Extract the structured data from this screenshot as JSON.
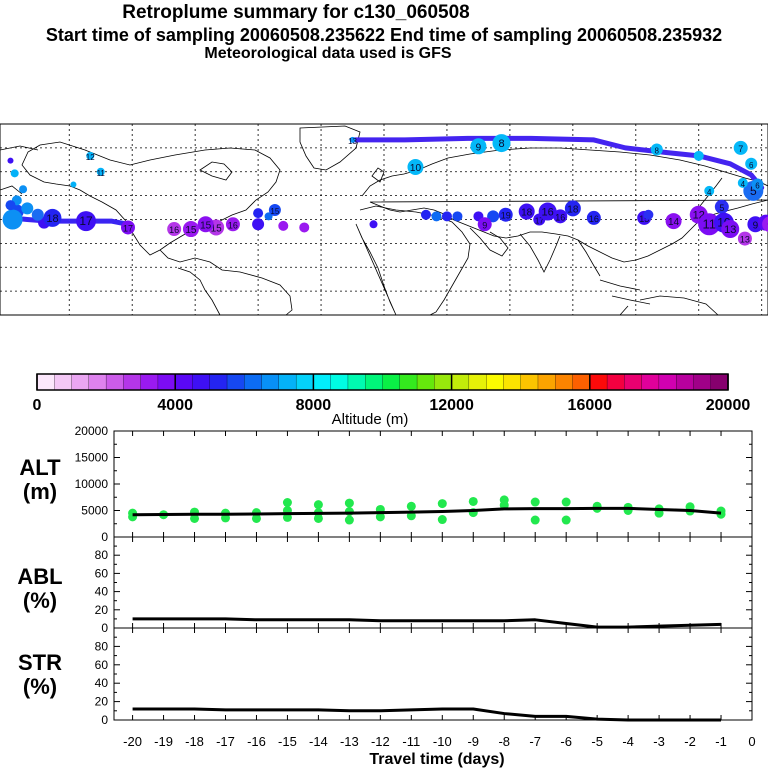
{
  "header": {
    "title": "Retroplume summary for c130_060508",
    "sampling": "Start time of sampling 20060508.235622     End time of sampling 20060508.235932",
    "met": "Meteorological data used is GFS"
  },
  "colorbar": {
    "label": "Altitude (m)",
    "ticks": [
      "0",
      "4000",
      "8000",
      "12000",
      "16000",
      "20000"
    ],
    "colors": [
      "#fce8fc",
      "#f4c8f6",
      "#eaa6f2",
      "#de82ee",
      "#cc5cea",
      "#b436e8",
      "#9a1af0",
      "#7c0cf4",
      "#5a08f6",
      "#3e10f4",
      "#2424f2",
      "#1648f2",
      "#0c6cf4",
      "#0890f6",
      "#04b2f8",
      "#04d2fa",
      "#02eefc",
      "#00fce4",
      "#00fab0",
      "#00f67a",
      "#0af046",
      "#34ea1e",
      "#66e80c",
      "#98e80c",
      "#c2ec0a",
      "#e6f208",
      "#fcfc00",
      "#fce400",
      "#fcc400",
      "#fca400",
      "#fc8400",
      "#fc6000",
      "#fc0a0a",
      "#f40040",
      "#ea0070",
      "#e0009a",
      "#d000b0",
      "#b8009e",
      "#a00088",
      "#86006e"
    ]
  },
  "panel_labels": {
    "alt": [
      "ALT",
      "(m)"
    ],
    "abl": [
      "ABL",
      "(%)"
    ],
    "str": [
      "STR",
      "(%)"
    ]
  },
  "xaxis_label": "Travel time (days)",
  "chart_data": [
    {
      "type": "scatter",
      "name": "ALT",
      "title": "",
      "xlabel": "Travel time (days)",
      "ylabel": "ALT (m)",
      "xlim": [
        -20,
        0
      ],
      "ylim": [
        0,
        20000
      ],
      "yticks": [
        0,
        5000,
        10000,
        15000,
        20000
      ],
      "line_color": "#000000",
      "point_color": "#22e84e",
      "line": {
        "x": [
          -20,
          -19,
          -18,
          -17,
          -16,
          -15,
          -14,
          -13,
          -12,
          -11,
          -10,
          -9,
          -8,
          -7,
          -6,
          -5,
          -4,
          -3,
          -2,
          -1
        ],
        "y": [
          4200,
          4250,
          4300,
          4300,
          4350,
          4400,
          4450,
          4500,
          4600,
          4700,
          4800,
          5000,
          5300,
          5350,
          5350,
          5400,
          5400,
          5200,
          5000,
          4500
        ]
      },
      "points": {
        "x": [
          -20,
          -20,
          -19,
          -18,
          -18,
          -17,
          -17,
          -16,
          -16,
          -15,
          -15,
          -15,
          -14,
          -14,
          -14,
          -13,
          -13,
          -13,
          -12,
          -12,
          -11,
          -11,
          -10,
          -10,
          -9,
          -9,
          -8,
          -8,
          -7,
          -7,
          -6,
          -6,
          -5,
          -5,
          -4,
          -4,
          -3,
          -3,
          -2,
          -2,
          -1,
          -1
        ],
        "y": [
          4500,
          3800,
          4200,
          4700,
          3500,
          4500,
          3600,
          4600,
          3500,
          6500,
          5000,
          3700,
          6100,
          4600,
          3500,
          6400,
          4800,
          3200,
          5200,
          3800,
          5800,
          4000,
          6300,
          3300,
          6700,
          4600,
          7000,
          6000,
          6600,
          3200,
          6600,
          3200,
          5800,
          5400,
          5600,
          5000,
          5300,
          4500,
          5700,
          4900,
          4900,
          4300
        ]
      }
    },
    {
      "type": "line",
      "name": "ABL",
      "title": "",
      "xlabel": "Travel time (days)",
      "ylabel": "ABL (%)",
      "xlim": [
        -20,
        0
      ],
      "ylim": [
        0,
        100
      ],
      "yticks": [
        0,
        20,
        40,
        60,
        80
      ],
      "x": [
        -20,
        -19,
        -18,
        -17,
        -16,
        -15,
        -14,
        -13,
        -12,
        -11,
        -10,
        -9,
        -8,
        -7,
        -6,
        -5,
        -4,
        -3,
        -2,
        -1
      ],
      "y": [
        10,
        10,
        10,
        10,
        9,
        9,
        9,
        9,
        8,
        8,
        8,
        8,
        8,
        9,
        5,
        1,
        1,
        2,
        3,
        4
      ]
    },
    {
      "type": "line",
      "name": "STR",
      "title": "",
      "xlabel": "Travel time (days)",
      "ylabel": "STR (%)",
      "xlim": [
        -20,
        0
      ],
      "ylim": [
        0,
        100
      ],
      "yticks": [
        0,
        20,
        40,
        60,
        80
      ],
      "xticks": [
        "-20",
        "-19",
        "-18",
        "-17",
        "-16",
        "-15",
        "-14",
        "-13",
        "-12",
        "-11",
        "-10",
        "-9",
        "-8",
        "-7",
        "-6",
        "-5",
        "-4",
        "-3",
        "-2",
        "-1",
        "0"
      ],
      "x": [
        -20,
        -19,
        -18,
        -17,
        -16,
        -15,
        -14,
        -13,
        -12,
        -11,
        -10,
        -9,
        -8,
        -7,
        -6,
        -5,
        -4,
        -3,
        -2,
        -1
      ],
      "y": [
        12,
        12,
        12,
        11,
        11,
        11,
        11,
        10,
        10,
        11,
        12,
        12,
        7,
        4,
        4,
        1,
        0,
        0,
        0,
        0
      ]
    }
  ],
  "map": {
    "markers": [
      {
        "lon": 170,
        "lat": 60,
        "label": "7",
        "color": "#04b8f8",
        "size": 7
      },
      {
        "lon": 175,
        "lat": 50,
        "label": "6",
        "color": "#04b8f8",
        "size": 6
      },
      {
        "lon": 176,
        "lat": 33,
        "label": "5",
        "color": "#1a6cf2",
        "size": 10
      },
      {
        "lon": 178,
        "lat": 37,
        "label": "6",
        "color": "#0c90f4",
        "size": 6
      },
      {
        "lon": 171,
        "lat": 38,
        "label": "4",
        "color": "#04b8f8",
        "size": 5
      },
      {
        "lon": 155,
        "lat": 33,
        "label": "4",
        "color": "#04b8f8",
        "size": 5
      },
      {
        "lon": 161,
        "lat": 23,
        "label": "5",
        "color": "#2a30f2",
        "size": 7
      },
      {
        "lon": 150,
        "lat": 18,
        "label": "12",
        "color": "#8a10f0",
        "size": 9
      },
      {
        "lon": 155,
        "lat": 12,
        "label": "11",
        "color": "#7c0cf4",
        "size": 11
      },
      {
        "lon": 162,
        "lat": 13,
        "label": "10",
        "color": "#3e10f4",
        "size": 10
      },
      {
        "lon": 165,
        "lat": 9,
        "label": "13",
        "color": "#7c0cf4",
        "size": 9
      },
      {
        "lon": 172,
        "lat": 3,
        "label": "13",
        "color": "#b436e8",
        "size": 7
      },
      {
        "lon": 177,
        "lat": 12,
        "label": "9",
        "color": "#3e10f4",
        "size": 8
      },
      {
        "lon": 182,
        "lat": 13,
        "label": "8",
        "color": "#5a08f6",
        "size": 8
      },
      {
        "lon": 184,
        "lat": 12,
        "label": "9",
        "color": "#9a1af0",
        "size": 8
      },
      {
        "lon": 138,
        "lat": 14,
        "label": "14",
        "color": "#8a10f0",
        "size": 8
      },
      {
        "lon": 124,
        "lat": 16,
        "label": "15",
        "color": "#3e10f4",
        "size": 7
      },
      {
        "lon": 126,
        "lat": 18,
        "label": "",
        "color": "#2a30f2",
        "size": 5
      },
      {
        "lon": 100,
        "lat": 16,
        "label": "16",
        "color": "#2424f2",
        "size": 7
      },
      {
        "lon": 84,
        "lat": 17,
        "label": "16",
        "color": "#3e10f4",
        "size": 7
      },
      {
        "lon": 74,
        "lat": 15,
        "label": "17",
        "color": "#3e10f4",
        "size": 6
      },
      {
        "lon": 90,
        "lat": 22,
        "label": "18",
        "color": "#2424f2",
        "size": 8
      },
      {
        "lon": 78,
        "lat": 20,
        "label": "16",
        "color": "#3e10f4",
        "size": 9
      },
      {
        "lon": 68,
        "lat": 20,
        "label": "18",
        "color": "#3e10f4",
        "size": 8
      },
      {
        "lon": 58,
        "lat": 18,
        "label": "19",
        "color": "#2424f2",
        "size": 7
      },
      {
        "lon": 52,
        "lat": 17,
        "label": "",
        "color": "#1648f2",
        "size": 6
      },
      {
        "lon": 45,
        "lat": 17,
        "label": "",
        "color": "#3e10f4",
        "size": 5
      },
      {
        "lon": 48,
        "lat": 12,
        "label": "9",
        "color": "#7c0cf4",
        "size": 7
      },
      {
        "lon": 20,
        "lat": 18,
        "label": "",
        "color": "#2424f2",
        "size": 5
      },
      {
        "lon": 25,
        "lat": 17,
        "label": "",
        "color": "#0c6cf4",
        "size": 5
      },
      {
        "lon": 30,
        "lat": 17,
        "label": "",
        "color": "#2424f2",
        "size": 5
      },
      {
        "lon": 35,
        "lat": 17,
        "label": "",
        "color": "#1648f2",
        "size": 5
      },
      {
        "lon": -5,
        "lat": 12,
        "label": "",
        "color": "#3e10f4",
        "size": 4
      },
      {
        "lon": -38,
        "lat": 10,
        "label": "",
        "color": "#9a1af0",
        "size": 5
      },
      {
        "lon": -48,
        "lat": 11,
        "label": "",
        "color": "#9a1af0",
        "size": 5
      },
      {
        "lon": -55,
        "lat": 17,
        "label": "",
        "color": "#0c6cf4",
        "size": 4
      },
      {
        "lon": -52,
        "lat": 21,
        "label": "15",
        "color": "#1648f2",
        "size": 6
      },
      {
        "lon": -60,
        "lat": 19,
        "label": "",
        "color": "#2424f2",
        "size": 5
      },
      {
        "lon": -60,
        "lat": 12,
        "label": "",
        "color": "#3e10f4",
        "size": 6
      },
      {
        "lon": -72,
        "lat": 12,
        "label": "16",
        "color": "#9a1af0",
        "size": 7
      },
      {
        "lon": -80,
        "lat": 10,
        "label": "15",
        "color": "#b436e8",
        "size": 8
      },
      {
        "lon": -85,
        "lat": 12,
        "label": "15",
        "color": "#8a10f0",
        "size": 8
      },
      {
        "lon": -92,
        "lat": 9,
        "label": "15",
        "color": "#9a1af0",
        "size": 8
      },
      {
        "lon": -100,
        "lat": 9,
        "label": "16",
        "color": "#b436e8",
        "size": 7
      },
      {
        "lon": -122,
        "lat": 10,
        "label": "17",
        "color": "#7c0cf4",
        "size": 7
      },
      {
        "lon": -142,
        "lat": 14,
        "label": "17",
        "color": "#3e10f4",
        "size": 10
      },
      {
        "lon": -162,
        "lat": 13,
        "label": "",
        "color": "#3e10f4",
        "size": 6
      },
      {
        "lon": -158,
        "lat": 16,
        "label": "18",
        "color": "#2424f2",
        "size": 9
      },
      {
        "lon": -165,
        "lat": 18,
        "label": "",
        "color": "#1a6cf2",
        "size": 6
      },
      {
        "lon": -175,
        "lat": 20,
        "label": "",
        "color": "#1648f2",
        "size": 7
      },
      {
        "lon": -177,
        "lat": 15,
        "label": "",
        "color": "#0c90f4",
        "size": 10
      },
      {
        "lon": -170,
        "lat": 22,
        "label": "",
        "color": "#0c90f4",
        "size": 6
      },
      {
        "lon": -175,
        "lat": 27,
        "label": "",
        "color": "#0c90f4",
        "size": 5
      },
      {
        "lon": -178,
        "lat": 24,
        "label": "",
        "color": "#1648f2",
        "size": 5
      },
      {
        "lon": -172,
        "lat": 34,
        "label": "",
        "color": "#0c90f4",
        "size": 4
      },
      {
        "lon": -176,
        "lat": 44,
        "label": "",
        "color": "#04b2f8",
        "size": 4
      },
      {
        "lon": -178,
        "lat": 52,
        "label": "",
        "color": "#3e10f4",
        "size": 3
      },
      {
        "lon": -148,
        "lat": 37,
        "label": "",
        "color": "#04b2f8",
        "size": 3
      },
      {
        "lon": -140,
        "lat": 55,
        "label": "12",
        "color": "#04b2f8",
        "size": 4
      },
      {
        "lon": -135,
        "lat": 45,
        "label": "11",
        "color": "#04b2f8",
        "size": 4
      },
      {
        "lon": -15,
        "lat": 65,
        "label": "13",
        "color": "#0890f6",
        "size": 3
      },
      {
        "lon": 15,
        "lat": 48,
        "label": "10",
        "color": "#04b8f8",
        "size": 8
      },
      {
        "lon": 45,
        "lat": 61,
        "label": "9",
        "color": "#04b8f8",
        "size": 8
      },
      {
        "lon": 56,
        "lat": 63,
        "label": "8",
        "color": "#04b8f8",
        "size": 9
      },
      {
        "lon": 130,
        "lat": 59,
        "label": "8",
        "color": "#04b8f8",
        "size": 6
      },
      {
        "lon": 150,
        "lat": 55,
        "label": "",
        "color": "#04b8f8",
        "size": 5
      }
    ],
    "trajectories": [
      {
        "color": "#3a24f2",
        "points": [
          [
            -178,
            16
          ],
          [
            -170,
            15
          ],
          [
            -160,
            14
          ],
          [
            -150,
            14
          ],
          [
            -140,
            14
          ],
          [
            -130,
            14
          ],
          [
            -122,
            12
          ]
        ]
      },
      {
        "color": "#4424f0",
        "points": [
          [
            -15,
            65
          ],
          [
            10,
            65
          ],
          [
            40,
            66
          ],
          [
            70,
            66
          ],
          [
            100,
            65
          ],
          [
            115,
            60
          ],
          [
            135,
            57
          ],
          [
            150,
            55
          ],
          [
            165,
            50
          ],
          [
            175,
            43
          ],
          [
            180,
            35
          ]
        ]
      }
    ]
  }
}
